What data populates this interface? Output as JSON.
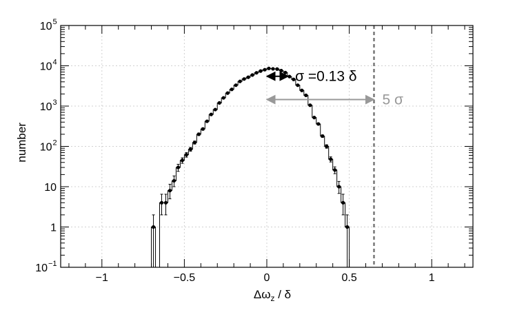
{
  "chart_data": {
    "type": "histogram",
    "title": "",
    "xlabel": "Δω_z / δ",
    "ylabel": "number",
    "x_axis": {
      "range": [
        -1.25,
        1.25
      ],
      "ticks": [
        -1,
        -0.5,
        0,
        0.5,
        1
      ],
      "tick_labels": [
        "−1",
        "−0.5",
        "0",
        "0.5",
        "1"
      ]
    },
    "y_axis": {
      "scale": "log",
      "range": [
        0.1,
        100000
      ],
      "ticks": [
        0.1,
        1,
        10,
        100,
        1000,
        10000,
        100000
      ],
      "tick_labels": [
        {
          "base": "10",
          "exp": "−1"
        },
        {
          "base": "1",
          "exp": ""
        },
        {
          "base": "10",
          "exp": ""
        },
        {
          "base": "10",
          "exp": "2"
        },
        {
          "base": "10",
          "exp": "3"
        },
        {
          "base": "10",
          "exp": "4"
        },
        {
          "base": "10",
          "exp": "5"
        }
      ]
    },
    "grid": true,
    "series": [
      {
        "bin_width": 0.025,
        "points": [
          {
            "x": -0.6875,
            "y": 1,
            "err_lo": 0.9,
            "err_hi": 1.0
          },
          {
            "x": -0.6375,
            "y": 4,
            "err_lo": 2.0,
            "err_hi": 2.5
          },
          {
            "x": -0.6125,
            "y": 4,
            "err_lo": 2.0,
            "err_hi": 2.5
          },
          {
            "x": -0.5875,
            "y": 8,
            "err_lo": 3.0,
            "err_hi": 3.5
          },
          {
            "x": -0.5625,
            "y": 14,
            "err_lo": 4.0,
            "err_hi": 4.5
          },
          {
            "x": -0.5375,
            "y": 30,
            "err_lo": 6.0,
            "err_hi": 6.0
          },
          {
            "x": -0.5125,
            "y": 45,
            "err_lo": 7.0,
            "err_hi": 7.0
          },
          {
            "x": -0.4875,
            "y": 62,
            "err_lo": 8.0,
            "err_hi": 8.0
          },
          {
            "x": -0.4625,
            "y": 85,
            "err_lo": 9.0,
            "err_hi": 9.0
          },
          {
            "x": -0.4375,
            "y": 125,
            "err_lo": 11.0,
            "err_hi": 11.0
          },
          {
            "x": -0.4125,
            "y": 200,
            "err_lo": 14.0,
            "err_hi": 14.0
          },
          {
            "x": -0.3875,
            "y": 270,
            "err_lo": 16.0,
            "err_hi": 16.0
          },
          {
            "x": -0.3625,
            "y": 420,
            "err_lo": 20.0,
            "err_hi": 20.0
          },
          {
            "x": -0.3375,
            "y": 620,
            "err_lo": 25.0,
            "err_hi": 25.0
          },
          {
            "x": -0.3125,
            "y": 820,
            "err_lo": 28.0,
            "err_hi": 28.0
          },
          {
            "x": -0.2875,
            "y": 1200,
            "err_lo": 35.0,
            "err_hi": 35.0
          },
          {
            "x": -0.2625,
            "y": 1600,
            "err_lo": 40.0,
            "err_hi": 40.0
          },
          {
            "x": -0.2375,
            "y": 2100,
            "err_lo": 45.0,
            "err_hi": 45.0
          },
          {
            "x": -0.2125,
            "y": 2600,
            "err_lo": 50.0,
            "err_hi": 50.0
          },
          {
            "x": -0.1875,
            "y": 3300,
            "err_lo": 57.0,
            "err_hi": 57.0
          },
          {
            "x": -0.1625,
            "y": 4100,
            "err_lo": 64.0,
            "err_hi": 64.0
          },
          {
            "x": -0.1375,
            "y": 4700,
            "err_lo": 68.0,
            "err_hi": 68.0
          },
          {
            "x": -0.1125,
            "y": 5200,
            "err_lo": 72.0,
            "err_hi": 72.0
          },
          {
            "x": -0.0875,
            "y": 5900,
            "err_lo": 77.0,
            "err_hi": 77.0
          },
          {
            "x": -0.0625,
            "y": 6700,
            "err_lo": 82.0,
            "err_hi": 82.0
          },
          {
            "x": -0.0375,
            "y": 7400,
            "err_lo": 86.0,
            "err_hi": 86.0
          },
          {
            "x": -0.0125,
            "y": 8000,
            "err_lo": 89.0,
            "err_hi": 89.0
          },
          {
            "x": 0.0125,
            "y": 8600,
            "err_lo": 93.0,
            "err_hi": 93.0
          },
          {
            "x": 0.0375,
            "y": 8400,
            "err_lo": 92.0,
            "err_hi": 92.0
          },
          {
            "x": 0.0625,
            "y": 8300,
            "err_lo": 91.0,
            "err_hi": 91.0
          },
          {
            "x": 0.0875,
            "y": 7600,
            "err_lo": 87.0,
            "err_hi": 87.0
          },
          {
            "x": 0.1125,
            "y": 6800,
            "err_lo": 82.0,
            "err_hi": 82.0
          },
          {
            "x": 0.1375,
            "y": 5400,
            "err_lo": 73.0,
            "err_hi": 73.0
          },
          {
            "x": 0.1625,
            "y": 4600,
            "err_lo": 68.0,
            "err_hi": 68.0
          },
          {
            "x": 0.1875,
            "y": 3300,
            "err_lo": 57.0,
            "err_hi": 57.0
          },
          {
            "x": 0.2125,
            "y": 2450,
            "err_lo": 50.0,
            "err_hi": 50.0
          },
          {
            "x": 0.2375,
            "y": 1850,
            "err_lo": 43.0,
            "err_hi": 43.0
          },
          {
            "x": 0.2625,
            "y": 1050,
            "err_lo": 32.0,
            "err_hi": 32.0
          },
          {
            "x": 0.2875,
            "y": 520,
            "err_lo": 23.0,
            "err_hi": 23.0
          },
          {
            "x": 0.3125,
            "y": 360,
            "err_lo": 19.0,
            "err_hi": 19.0
          },
          {
            "x": 0.3375,
            "y": 180,
            "err_lo": 13.0,
            "err_hi": 13.0
          },
          {
            "x": 0.3625,
            "y": 100,
            "err_lo": 10.0,
            "err_hi": 10.0
          },
          {
            "x": 0.3875,
            "y": 48,
            "err_lo": 7.0,
            "err_hi": 7.0
          },
          {
            "x": 0.4125,
            "y": 26,
            "err_lo": 5.0,
            "err_hi": 5.0
          },
          {
            "x": 0.4375,
            "y": 10,
            "err_lo": 3.2,
            "err_hi": 3.5
          },
          {
            "x": 0.4625,
            "y": 4,
            "err_lo": 2.0,
            "err_hi": 2.5
          },
          {
            "x": 0.4875,
            "y": 1,
            "err_lo": 0.9,
            "err_hi": 1.0
          }
        ],
        "color": "#000000"
      }
    ],
    "annotations": [
      {
        "name": "sigma",
        "x_from": 0,
        "x_to": 0.13,
        "y": 5500,
        "label": "σ =0.13 δ",
        "color": "#000000"
      },
      {
        "name": "five-sigma",
        "x_from": 0,
        "x_to": 0.65,
        "y": 1450,
        "label": "5 σ",
        "color": "#999999"
      },
      {
        "name": "five-sigma-line",
        "x": 0.65,
        "style": "dashed",
        "color": "#777777"
      }
    ]
  }
}
